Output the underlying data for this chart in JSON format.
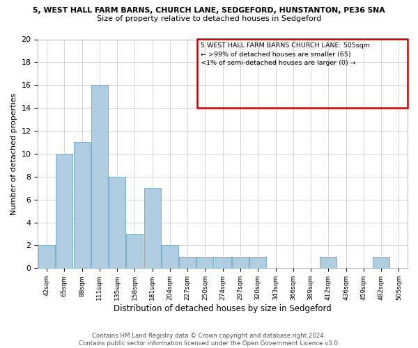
{
  "title_line1": "5, WEST HALL FARM BARNS, CHURCH LANE, SEDGEFORD, HUNSTANTON, PE36 5NA",
  "title_line2": "Size of property relative to detached houses in Sedgeford",
  "xlabel": "Distribution of detached houses by size in Sedgeford",
  "ylabel": "Number of detached properties",
  "bin_labels": [
    "42sqm",
    "65sqm",
    "88sqm",
    "111sqm",
    "135sqm",
    "158sqm",
    "181sqm",
    "204sqm",
    "227sqm",
    "250sqm",
    "274sqm",
    "297sqm",
    "320sqm",
    "343sqm",
    "366sqm",
    "389sqm",
    "412sqm",
    "436sqm",
    "459sqm",
    "482sqm",
    "505sqm"
  ],
  "bar_heights": [
    2,
    10,
    11,
    16,
    8,
    3,
    7,
    2,
    1,
    1,
    1,
    1,
    1,
    0,
    0,
    0,
    1,
    0,
    0,
    1,
    0
  ],
  "bar_color": "#aecde0",
  "bar_edge_color": "#7bafc8",
  "ylim": [
    0,
    20
  ],
  "yticks": [
    0,
    2,
    4,
    6,
    8,
    10,
    12,
    14,
    16,
    18,
    20
  ],
  "annotation_box_color": "#cc0000",
  "annotation_line1": "5 WEST HALL FARM BARNS CHURCH LANE: 505sqm",
  "annotation_line2": "← >99% of detached houses are smaller (65)",
  "annotation_line3": "<1% of semi-detached houses are larger (0) →",
  "footer_line1": "Contains HM Land Registry data © Crown copyright and database right 2024.",
  "footer_line2": "Contains public sector information licensed under the Open Government Licence v3.0.",
  "bg_color": "#ffffff",
  "grid_color": "#cccccc"
}
